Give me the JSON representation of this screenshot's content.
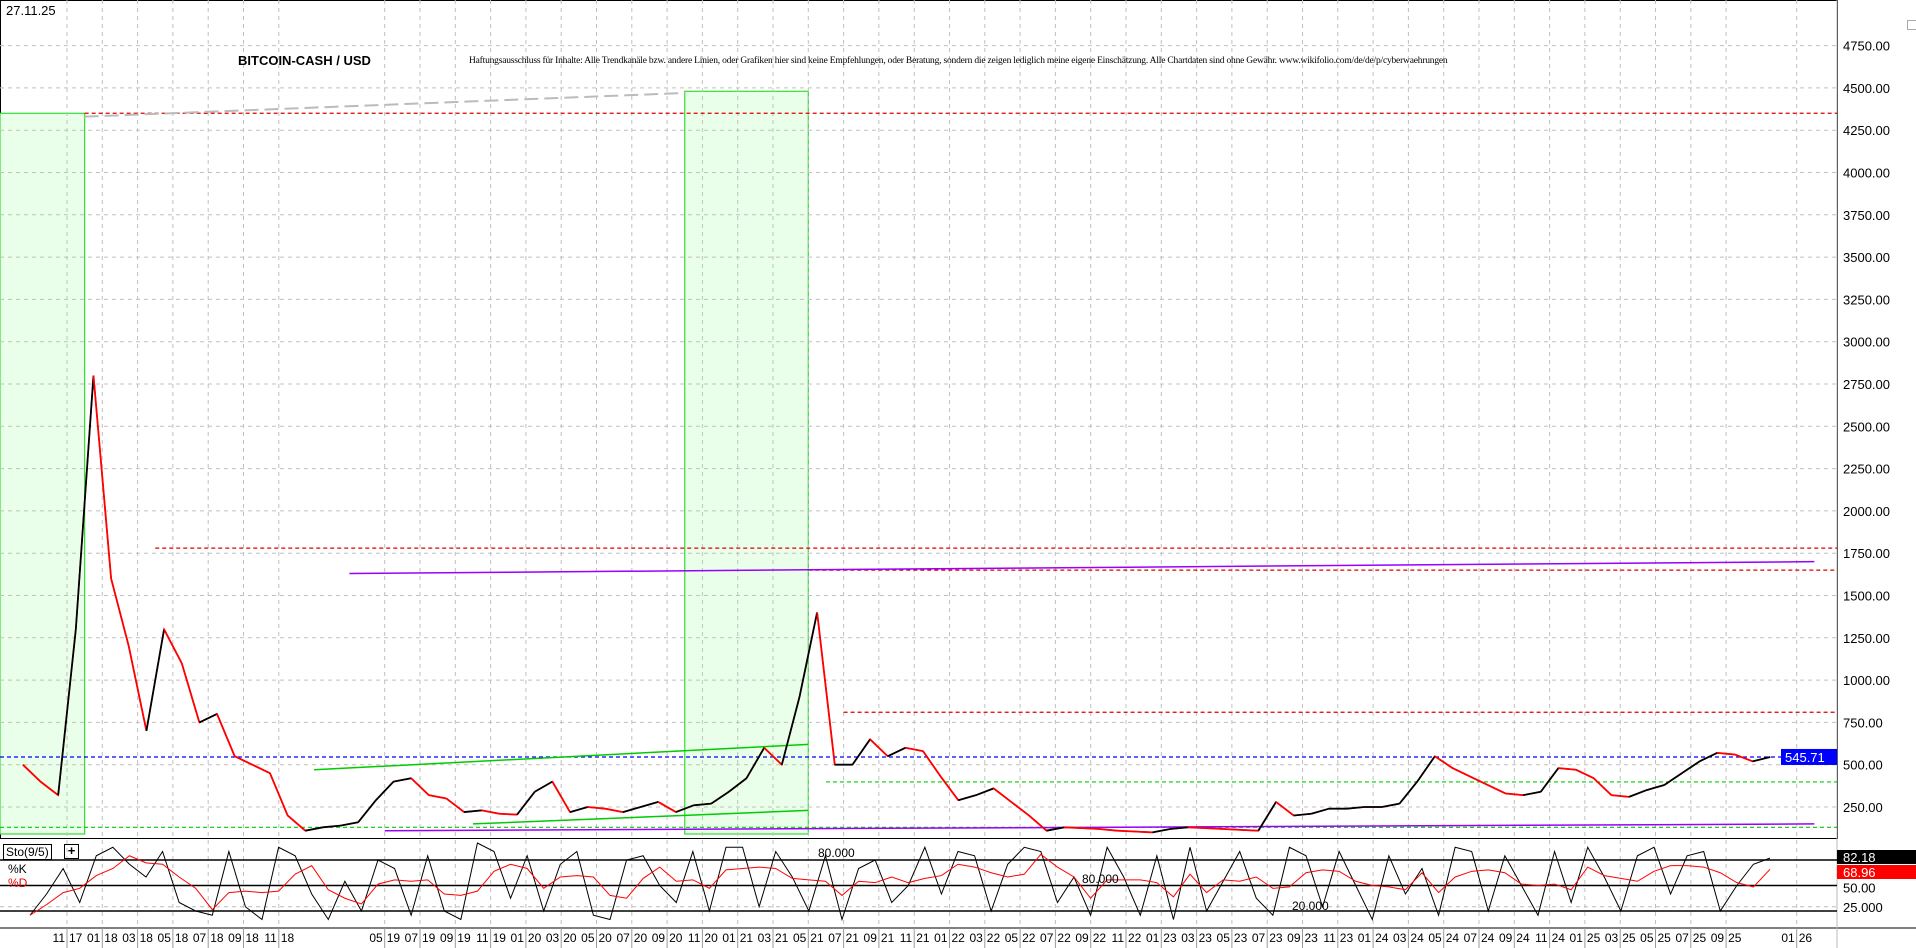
{
  "header": {
    "date": "27.11.25",
    "title": "BITCOIN-CASH / USD",
    "disclaimer": "Haftungsausschluss für Inhalte: Alle Trendkanäle bzw. andere Linien, oder Grafiken hier sind keine Empfehlungen, oder Beratung, sondern die zeigen lediglich meine eigene Einschätzung. Alle Chartdaten sind ohne Gewähr. www.wikifolio.com/de/de/p/cyberwaehrungen"
  },
  "indicator": {
    "name": "Sto(9/5)",
    "k_label": "%K",
    "d_label": "%D",
    "k_last": "82.18",
    "d_last": "68.96",
    "level_labels": [
      "80.000",
      "80.000",
      "20.000"
    ],
    "axis_labels": [
      "50.00",
      "25.000"
    ]
  },
  "colors": {
    "price_up": "#000000",
    "price_down": "#ff0000",
    "last_price_badge": "#0000ff",
    "resistance": "#dd0000",
    "support": "#00cc00",
    "trend_purple": "#9900ff",
    "zone_fill": "#eaffea",
    "zone_border": "#33dd33"
  },
  "chart_data": [
    {
      "type": "line",
      "title": "BITCOIN-CASH / USD",
      "ylim": [
        0,
        4900
      ],
      "y_ticks": [
        "250.00",
        "500.00",
        "750.00",
        "1000.00",
        "1250.00",
        "1500.00",
        "1750.00",
        "2000.00",
        "2250.00",
        "2500.00",
        "2750.00",
        "3000.00",
        "3250.00",
        "3500.00",
        "3750.00",
        "4000.00",
        "4250.00",
        "4500.00",
        "4750.00"
      ],
      "x_ticks": [
        [
          "11",
          "17"
        ],
        [
          "01",
          "18"
        ],
        [
          "03",
          "18"
        ],
        [
          "05",
          "18"
        ],
        [
          "07",
          "18"
        ],
        [
          "09",
          "18"
        ],
        [
          "11",
          "18"
        ],
        [
          "05",
          "19"
        ],
        [
          "07",
          "19"
        ],
        [
          "09",
          "19"
        ],
        [
          "11",
          "19"
        ],
        [
          "01",
          "20"
        ],
        [
          "03",
          "20"
        ],
        [
          "05",
          "20"
        ],
        [
          "07",
          "20"
        ],
        [
          "09",
          "20"
        ],
        [
          "11",
          "20"
        ],
        [
          "01",
          "21"
        ],
        [
          "03",
          "21"
        ],
        [
          "05",
          "21"
        ],
        [
          "07",
          "21"
        ],
        [
          "09",
          "21"
        ],
        [
          "11",
          "21"
        ],
        [
          "01",
          "22"
        ],
        [
          "03",
          "22"
        ],
        [
          "05",
          "22"
        ],
        [
          "07",
          "22"
        ],
        [
          "09",
          "22"
        ],
        [
          "11",
          "22"
        ],
        [
          "01",
          "23"
        ],
        [
          "03",
          "23"
        ],
        [
          "05",
          "23"
        ],
        [
          "07",
          "23"
        ],
        [
          "09",
          "23"
        ],
        [
          "11",
          "23"
        ],
        [
          "01",
          "24"
        ],
        [
          "03",
          "24"
        ],
        [
          "05",
          "24"
        ],
        [
          "07",
          "24"
        ],
        [
          "09",
          "24"
        ],
        [
          "11",
          "24"
        ],
        [
          "01",
          "25"
        ],
        [
          "03",
          "25"
        ],
        [
          "05",
          "25"
        ],
        [
          "07",
          "25"
        ],
        [
          "09",
          "25"
        ],
        [
          "01",
          "26"
        ]
      ],
      "grid": true,
      "last_price": "545.71",
      "series": {
        "dates": [
          "2017-08",
          "2017-09",
          "2017-10",
          "2017-11",
          "2017-12",
          "2018-01",
          "2018-02",
          "2018-03",
          "2018-04",
          "2018-05",
          "2018-06",
          "2018-07",
          "2018-08",
          "2018-09",
          "2018-10",
          "2018-11",
          "2018-12",
          "2019-01",
          "2019-02",
          "2019-03",
          "2019-04",
          "2019-05",
          "2019-06",
          "2019-07",
          "2019-08",
          "2019-09",
          "2019-10",
          "2019-11",
          "2019-12",
          "2020-01",
          "2020-02",
          "2020-03",
          "2020-04",
          "2020-05",
          "2020-06",
          "2020-07",
          "2020-08",
          "2020-09",
          "2020-10",
          "2020-11",
          "2020-12",
          "2021-01",
          "2021-02",
          "2021-03",
          "2021-04",
          "2021-05",
          "2021-06",
          "2021-07",
          "2021-08",
          "2021-09",
          "2021-10",
          "2021-11",
          "2021-12",
          "2022-01",
          "2022-02",
          "2022-03",
          "2022-04",
          "2022-05",
          "2022-06",
          "2022-07",
          "2022-08",
          "2022-09",
          "2022-10",
          "2022-11",
          "2022-12",
          "2023-01",
          "2023-02",
          "2023-03",
          "2023-04",
          "2023-05",
          "2023-06",
          "2023-07",
          "2023-08",
          "2023-09",
          "2023-10",
          "2023-11",
          "2023-12",
          "2024-01",
          "2024-02",
          "2024-03",
          "2024-04",
          "2024-05",
          "2024-06",
          "2024-07",
          "2024-08",
          "2024-09",
          "2024-10",
          "2024-11",
          "2024-12",
          "2025-01",
          "2025-02",
          "2025-03",
          "2025-04",
          "2025-05",
          "2025-06",
          "2025-07",
          "2025-08",
          "2025-09",
          "2025-10",
          "2025-11"
        ],
        "values": [
          500,
          400,
          320,
          1300,
          2800,
          1600,
          1200,
          700,
          1300,
          1100,
          750,
          800,
          550,
          500,
          450,
          200,
          110,
          130,
          140,
          160,
          290,
          400,
          420,
          320,
          300,
          220,
          230,
          210,
          205,
          340,
          400,
          220,
          250,
          240,
          220,
          250,
          280,
          220,
          260,
          270,
          340,
          420,
          600,
          500,
          900,
          1400,
          500,
          500,
          650,
          550,
          600,
          580,
          430,
          290,
          320,
          360,
          280,
          200,
          110,
          130,
          125,
          120,
          110,
          105,
          100,
          120,
          130,
          125,
          120,
          115,
          110,
          280,
          200,
          210,
          240,
          240,
          250,
          250,
          270,
          400,
          550,
          480,
          430,
          380,
          330,
          320,
          340,
          480,
          470,
          420,
          320,
          310,
          350,
          380,
          450,
          520,
          570,
          560,
          520,
          545.71
        ]
      },
      "zones": [
        {
          "from": "2017-07",
          "to": "2017-12",
          "low": 0,
          "high": 4350
        },
        {
          "from": "2020-10",
          "to": "2021-05",
          "low": 0,
          "high": 4480
        }
      ],
      "horizontal_levels": [
        {
          "value": 4350,
          "color": "red",
          "from": "2017-12"
        },
        {
          "value": 1780,
          "color": "red",
          "from": "2018-04"
        },
        {
          "value": 1650,
          "color": "red",
          "from": "2021-05"
        },
        {
          "value": 810,
          "color": "red",
          "from": "2021-07"
        },
        {
          "value": 545.71,
          "color": "blue",
          "from": "2017-07"
        },
        {
          "value": 398,
          "color": "green",
          "from": "2021-06"
        },
        {
          "value": 130,
          "color": "green",
          "from": "2017-07"
        }
      ],
      "trend_lines": [
        {
          "color": "purple",
          "from": [
            "2019-03",
            1630
          ],
          "to": [
            "2026-02",
            1700
          ]
        },
        {
          "color": "purple",
          "from": [
            "2019-05",
            110
          ],
          "to": [
            "2026-02",
            150
          ]
        },
        {
          "color": "green",
          "from": [
            "2019-01",
            470
          ],
          "to": [
            "2021-05",
            620
          ]
        },
        {
          "color": "green",
          "from": [
            "2019-10",
            150
          ],
          "to": [
            "2021-05",
            230
          ]
        },
        {
          "color": "gray",
          "from": [
            "2017-12",
            4330
          ],
          "to": [
            "2020-10",
            4470
          ]
        }
      ]
    },
    {
      "type": "line",
      "title": "Sto(9/5)",
      "ylim": [
        0,
        100
      ],
      "levels": [
        80,
        50,
        20
      ],
      "series": [
        {
          "name": "%K",
          "values": [
            15,
            40,
            70,
            30,
            85,
            95,
            75,
            60,
            90,
            30,
            20,
            15,
            90,
            25,
            10,
            95,
            85,
            40,
            10,
            55,
            20,
            80,
            70,
            15,
            85,
            20,
            10,
            100,
            90,
            35,
            85,
            20,
            75,
            90,
            15,
            10,
            80,
            85,
            50,
            30,
            90,
            20,
            95,
            95,
            25,
            90,
            60,
            20,
            85,
            10,
            70,
            80,
            30,
            50,
            95,
            40,
            90,
            85,
            20,
            75,
            95,
            90,
            30,
            60,
            15,
            95,
            60,
            15,
            85,
            10,
            95,
            20,
            55,
            90,
            35,
            15,
            95,
            85,
            25,
            90,
            50,
            10,
            85,
            40,
            70,
            15,
            95,
            90,
            20,
            85,
            50,
            15,
            90,
            30,
            95,
            60,
            20,
            85,
            95,
            40,
            85,
            90,
            20,
            50,
            75,
            82.18
          ]
        }
      ]
    }
  ]
}
